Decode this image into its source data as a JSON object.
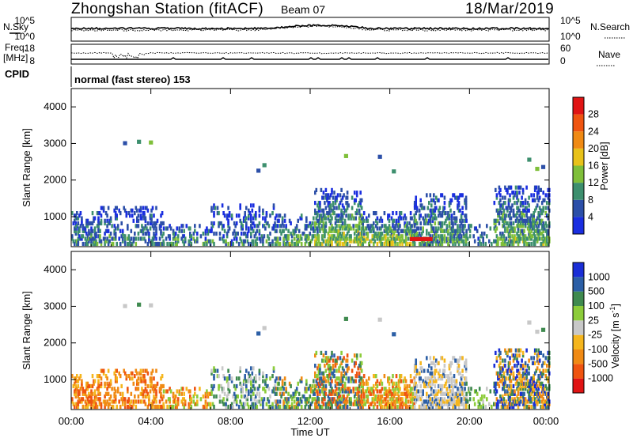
{
  "header": {
    "station": "Zhongshan Station (fitACF)",
    "beam": "Beam 07",
    "date": "18/Mar/2019"
  },
  "top_panels": {
    "nsky_label": "N.Sky",
    "nsky_ticks": [
      "10^5",
      "10^0"
    ],
    "nsearch_ticks": [
      "10^5",
      "10^0"
    ],
    "nsearch_label": "N.Search",
    "freq_label": "Freq.",
    "freq_unit": "[MHz]",
    "freq_ticks": [
      "18",
      "8"
    ],
    "nave_ticks": [
      "60",
      "0"
    ],
    "nave_label": "Nave",
    "cpid_label": "CPID",
    "cpid_text": "normal (fast stereo) 153"
  },
  "colors": {
    "power": [
      "#1a2ee0",
      "#2c4fa8",
      "#3d8f6e",
      "#7fbf3a",
      "#e8c21a",
      "#f08a14",
      "#ef5410",
      "#e01414"
    ],
    "velocity": [
      "#e01414",
      "#ef5410",
      "#f08a14",
      "#f5b61e",
      "#c8c8c8",
      "#8ccc3a",
      "#3f8a4f",
      "#2c5fa6",
      "#1a2ed6"
    ]
  },
  "chart_data": [
    {
      "type": "heatmap",
      "quantity": "Power",
      "ylabel": "Slant Range [km]",
      "ylim": [
        180,
        4500
      ],
      "y_ticks": [
        "1000",
        "2000",
        "3000",
        "4000"
      ],
      "x_ticks": [
        "00:00",
        "04:00",
        "08:00",
        "12:00",
        "16:00",
        "20:00",
        "00:00"
      ],
      "xlim_hours": [
        0,
        24
      ],
      "colorbar_label": "Power [dB]",
      "colorbar_ticks": [
        "28",
        "24",
        "20",
        "16",
        "12",
        "8",
        "4"
      ],
      "colorbar_range": [
        0,
        32
      ]
    },
    {
      "type": "heatmap",
      "quantity": "Velocity",
      "ylabel": "Slant Range [km]",
      "ylim": [
        180,
        4500
      ],
      "y_ticks": [
        "1000",
        "2000",
        "3000",
        "4000"
      ],
      "x_ticks": [
        "00:00",
        "04:00",
        "08:00",
        "12:00",
        "16:00",
        "20:00",
        "00:00"
      ],
      "xlabel": "Time UT",
      "xlim_hours": [
        0,
        24
      ],
      "colorbar_label": "Velocity [m s",
      "colorbar_label_sup": "-1",
      "colorbar_label_end": "]",
      "colorbar_ticks": [
        "1000",
        "500",
        "100",
        "25",
        "-25",
        "-100",
        "-500",
        "-1000"
      ]
    }
  ]
}
